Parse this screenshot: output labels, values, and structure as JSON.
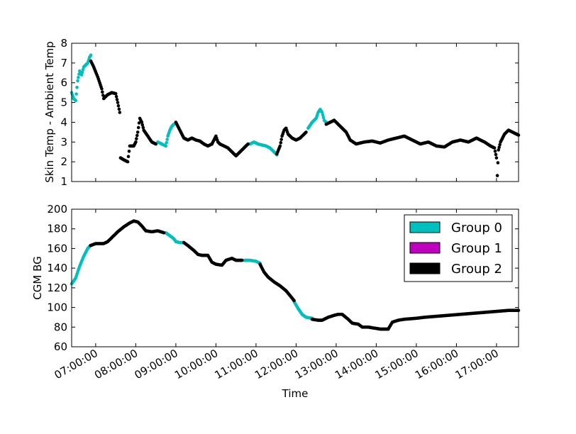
{
  "chart_data": [
    {
      "type": "scatter",
      "ylabel": "Skin Temp - Ambient Temp",
      "xlabel": "",
      "x_unit": "hours since 00:00",
      "xlim": [
        6.4,
        17.55
      ],
      "ylim": [
        1,
        8
      ],
      "yticks": [
        "1",
        "2",
        "3",
        "4",
        "5",
        "6",
        "7",
        "8"
      ],
      "grid": false,
      "series": [
        {
          "name": "Group 0",
          "color": "#00bfbf",
          "segments": [
            [
              [
                6.4,
                5.5
              ],
              [
                6.45,
                5.2
              ],
              [
                6.5,
                5.1
              ],
              [
                6.55,
                6.1
              ],
              [
                6.6,
                6.6
              ],
              [
                6.65,
                6.4
              ],
              [
                6.7,
                6.8
              ],
              [
                6.75,
                6.9
              ],
              [
                6.8,
                7.0
              ],
              [
                6.85,
                7.3
              ],
              [
                6.88,
                7.4
              ]
            ],
            [
              [
                8.55,
                3.0
              ],
              [
                8.65,
                2.9
              ],
              [
                8.75,
                2.8
              ],
              [
                8.8,
                3.3
              ],
              [
                8.85,
                3.6
              ],
              [
                8.9,
                3.8
              ],
              [
                8.95,
                3.9
              ],
              [
                9.0,
                3.95
              ]
            ],
            [
              [
                10.85,
                2.9
              ],
              [
                10.95,
                3.0
              ],
              [
                11.05,
                2.9
              ],
              [
                11.15,
                2.85
              ],
              [
                11.25,
                2.8
              ],
              [
                11.35,
                2.7
              ],
              [
                11.45,
                2.5
              ],
              [
                11.52,
                2.35
              ]
            ],
            [
              [
                12.3,
                3.7
              ],
              [
                12.4,
                4.0
              ],
              [
                12.5,
                4.2
              ],
              [
                12.55,
                4.5
              ],
              [
                12.6,
                4.65
              ],
              [
                12.65,
                4.5
              ],
              [
                12.7,
                4.1
              ],
              [
                12.75,
                4.0
              ]
            ]
          ]
        },
        {
          "name": "Group 1",
          "color": "#bf00bf",
          "segments": []
        },
        {
          "name": "Group 2",
          "color": "#000000",
          "segments": [
            [
              [
                6.88,
                7.1
              ],
              [
                6.95,
                6.8
              ],
              [
                7.05,
                6.3
              ],
              [
                7.15,
                5.7
              ],
              [
                7.2,
                5.2
              ],
              [
                7.3,
                5.4
              ],
              [
                7.4,
                5.5
              ],
              [
                7.5,
                5.45
              ],
              [
                7.55,
                5.0
              ],
              [
                7.6,
                4.5
              ],
              [
                7.62,
                2.2
              ],
              [
                7.7,
                2.1
              ],
              [
                7.8,
                2.0
              ],
              [
                7.85,
                2.8
              ],
              [
                7.95,
                2.8
              ],
              [
                8.0,
                3.0
              ],
              [
                8.05,
                3.5
              ],
              [
                8.1,
                4.2
              ],
              [
                8.15,
                4.0
              ],
              [
                8.2,
                3.6
              ],
              [
                8.3,
                3.3
              ],
              [
                8.4,
                3.0
              ],
              [
                8.5,
                2.9
              ]
            ],
            [
              [
                9.0,
                4.0
              ],
              [
                9.1,
                3.6
              ],
              [
                9.2,
                3.2
              ],
              [
                9.3,
                3.1
              ],
              [
                9.4,
                3.2
              ],
              [
                9.5,
                3.1
              ],
              [
                9.6,
                3.05
              ],
              [
                9.7,
                2.9
              ],
              [
                9.8,
                2.8
              ],
              [
                9.9,
                2.9
              ],
              [
                10.0,
                3.3
              ],
              [
                10.05,
                3.0
              ],
              [
                10.1,
                2.9
              ],
              [
                10.2,
                2.8
              ],
              [
                10.3,
                2.7
              ],
              [
                10.4,
                2.5
              ],
              [
                10.5,
                2.3
              ],
              [
                10.6,
                2.5
              ],
              [
                10.7,
                2.7
              ],
              [
                10.8,
                2.9
              ]
            ],
            [
              [
                11.52,
                2.4
              ],
              [
                11.6,
                2.8
              ],
              [
                11.65,
                3.3
              ],
              [
                11.7,
                3.6
              ],
              [
                11.75,
                3.7
              ],
              [
                11.8,
                3.4
              ],
              [
                11.9,
                3.2
              ],
              [
                12.0,
                3.1
              ],
              [
                12.1,
                3.2
              ],
              [
                12.2,
                3.4
              ],
              [
                12.25,
                3.5
              ]
            ],
            [
              [
                12.75,
                3.9
              ],
              [
                12.85,
                4.0
              ],
              [
                12.95,
                4.1
              ],
              [
                13.05,
                3.9
              ],
              [
                13.15,
                3.7
              ],
              [
                13.25,
                3.5
              ],
              [
                13.35,
                3.1
              ],
              [
                13.5,
                2.9
              ],
              [
                13.7,
                3.0
              ],
              [
                13.9,
                3.05
              ],
              [
                14.1,
                2.95
              ],
              [
                14.3,
                3.1
              ],
              [
                14.5,
                3.2
              ],
              [
                14.7,
                3.3
              ],
              [
                14.9,
                3.1
              ],
              [
                15.1,
                2.9
              ],
              [
                15.3,
                3.0
              ],
              [
                15.5,
                2.8
              ],
              [
                15.7,
                2.75
              ],
              [
                15.9,
                3.0
              ],
              [
                16.1,
                3.1
              ],
              [
                16.3,
                3.0
              ],
              [
                16.5,
                3.2
              ],
              [
                16.7,
                3.0
              ],
              [
                16.85,
                2.8
              ],
              [
                16.95,
                2.7
              ],
              [
                17.0,
                2.2
              ],
              [
                17.02,
                1.3
              ],
              [
                17.05,
                2.6
              ],
              [
                17.1,
                3.0
              ],
              [
                17.2,
                3.4
              ],
              [
                17.3,
                3.6
              ],
              [
                17.4,
                3.5
              ],
              [
                17.5,
                3.4
              ],
              [
                17.55,
                3.35
              ]
            ]
          ]
        }
      ]
    },
    {
      "type": "scatter",
      "ylabel": "CGM BG",
      "xlabel": "Time",
      "x_unit": "hours since 00:00",
      "xlim": [
        6.4,
        17.55
      ],
      "ylim": [
        60,
        200
      ],
      "yticks": [
        "60",
        "80",
        "100",
        "120",
        "140",
        "160",
        "180",
        "200"
      ],
      "xticks": [
        {
          "x": 7,
          "label": "07:00:00"
        },
        {
          "x": 8,
          "label": "08:00:00"
        },
        {
          "x": 9,
          "label": "09:00:00"
        },
        {
          "x": 10,
          "label": "10:00:00"
        },
        {
          "x": 11,
          "label": "11:00:00"
        },
        {
          "x": 12,
          "label": "12:00:00"
        },
        {
          "x": 13,
          "label": "13:00:00"
        },
        {
          "x": 14,
          "label": "14:00:00"
        },
        {
          "x": 15,
          "label": "15:00:00"
        },
        {
          "x": 16,
          "label": "16:00:00"
        },
        {
          "x": 17,
          "label": "17:00:00"
        }
      ],
      "legend": {
        "position": "upper-right",
        "entries": [
          {
            "label": "Group 0",
            "color": "#00bfbf"
          },
          {
            "label": "Group 1",
            "color": "#bf00bf"
          },
          {
            "label": "Group 2",
            "color": "#000000"
          }
        ]
      },
      "grid": false,
      "series": [
        {
          "name": "Group 0",
          "color": "#00bfbf",
          "segments": [
            [
              [
                6.4,
                124
              ],
              [
                6.5,
                130
              ],
              [
                6.6,
                142
              ],
              [
                6.7,
                152
              ],
              [
                6.8,
                160
              ],
              [
                6.87,
                163
              ]
            ],
            [
              [
                8.75,
                176
              ],
              [
                8.85,
                173
              ],
              [
                8.95,
                170
              ],
              [
                9.0,
                167
              ],
              [
                9.1,
                166
              ],
              [
                9.2,
                166
              ]
            ],
            [
              [
                10.7,
                148
              ],
              [
                10.85,
                148
              ],
              [
                11.0,
                147
              ],
              [
                11.1,
                145
              ]
            ],
            [
              [
                11.95,
                106
              ],
              [
                12.05,
                99
              ],
              [
                12.15,
                93
              ],
              [
                12.25,
                90
              ],
              [
                12.4,
                89
              ]
            ]
          ]
        },
        {
          "name": "Group 1",
          "color": "#bf00bf",
          "segments": []
        },
        {
          "name": "Group 2",
          "color": "#000000",
          "segments": [
            [
              [
                6.87,
                163
              ],
              [
                7.0,
                165
              ],
              [
                7.2,
                165
              ],
              [
                7.3,
                167
              ],
              [
                7.45,
                173
              ],
              [
                7.55,
                177
              ],
              [
                7.7,
                182
              ],
              [
                7.85,
                186
              ],
              [
                7.95,
                188
              ],
              [
                8.05,
                187
              ],
              [
                8.15,
                183
              ],
              [
                8.25,
                178
              ],
              [
                8.4,
                177
              ],
              [
                8.55,
                178
              ],
              [
                8.7,
                176
              ]
            ],
            [
              [
                9.2,
                166
              ],
              [
                9.3,
                163
              ],
              [
                9.45,
                158
              ],
              [
                9.55,
                154
              ],
              [
                9.65,
                153
              ],
              [
                9.8,
                153
              ],
              [
                9.9,
                146
              ],
              [
                10.0,
                144
              ],
              [
                10.15,
                143
              ],
              [
                10.25,
                148
              ],
              [
                10.4,
                150
              ],
              [
                10.5,
                148
              ],
              [
                10.65,
                148
              ]
            ],
            [
              [
                11.1,
                144
              ],
              [
                11.2,
                136
              ],
              [
                11.3,
                131
              ],
              [
                11.45,
                126
              ],
              [
                11.6,
                122
              ],
              [
                11.75,
                117
              ],
              [
                11.85,
                112
              ],
              [
                11.95,
                107
              ]
            ],
            [
              [
                12.4,
                88
              ],
              [
                12.55,
                87
              ],
              [
                12.65,
                87
              ],
              [
                12.8,
                90
              ],
              [
                12.95,
                92
              ],
              [
                13.05,
                93
              ],
              [
                13.15,
                93
              ],
              [
                13.3,
                88
              ],
              [
                13.4,
                84
              ],
              [
                13.55,
                83
              ],
              [
                13.65,
                80
              ],
              [
                13.8,
                80
              ],
              [
                13.95,
                79
              ],
              [
                14.1,
                78
              ],
              [
                14.3,
                78
              ],
              [
                14.4,
                85
              ],
              [
                14.55,
                87
              ],
              [
                14.7,
                88
              ],
              [
                15.0,
                89
              ],
              [
                15.2,
                90
              ],
              [
                15.5,
                91
              ],
              [
                15.8,
                92
              ],
              [
                16.1,
                93
              ],
              [
                16.4,
                94
              ],
              [
                16.7,
                95
              ],
              [
                17.0,
                96
              ],
              [
                17.3,
                97
              ],
              [
                17.55,
                97
              ]
            ]
          ]
        }
      ]
    }
  ]
}
